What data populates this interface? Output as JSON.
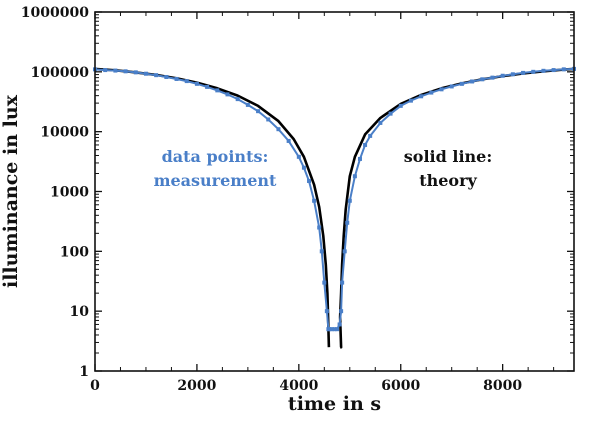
{
  "chart_data": {
    "type": "line",
    "xlabel": "time in s",
    "ylabel": "illuminance in lux",
    "xlim": [
      0,
      9400
    ],
    "ylim": [
      1,
      1000000
    ],
    "yscale": "log",
    "grid": false,
    "x_ticks": [
      0,
      2000,
      4000,
      6000,
      8000
    ],
    "x_tick_labels": [
      "0",
      "2000",
      "4000",
      "6000",
      "8000"
    ],
    "y_ticks": [
      1,
      10,
      100,
      1000,
      10000,
      100000,
      1000000
    ],
    "y_tick_labels": [
      "1",
      "10",
      "100",
      "1000",
      "10000",
      "100000",
      "1000000"
    ],
    "annotations": [
      {
        "lines": [
          "data points:",
          "measurement"
        ],
        "color": "#4a7fc8"
      },
      {
        "lines": [
          "solid line:",
          "theory"
        ],
        "color": "#111111"
      }
    ],
    "colors": {
      "measurement": "#4a7fc8",
      "theory": "#000000"
    },
    "series": [
      {
        "role": "measurement",
        "style": "points",
        "x": [
          0,
          200,
          400,
          600,
          800,
          1000,
          1200,
          1400,
          1600,
          1800,
          2000,
          2200,
          2400,
          2600,
          2800,
          3000,
          3200,
          3400,
          3600,
          3800,
          4000,
          4100,
          4200,
          4300,
          4400,
          4450,
          4500,
          4550,
          4580,
          4600,
          4650,
          4700,
          4750,
          4800,
          4830,
          4850,
          4900,
          4950,
          5000,
          5100,
          5200,
          5300,
          5400,
          5600,
          5800,
          6000,
          6200,
          6400,
          6600,
          6800,
          7000,
          7200,
          7400,
          7600,
          7800,
          8000,
          8200,
          8400,
          8600,
          8800,
          9000,
          9200,
          9400
        ],
        "y": [
          110000,
          107000,
          105000,
          102000,
          98000,
          93000,
          88000,
          82000,
          76000,
          70000,
          63000,
          56000,
          49000,
          42000,
          35000,
          28000,
          22000,
          16000,
          11000,
          7000,
          3800,
          2500,
          1500,
          700,
          250,
          100,
          30,
          10,
          5,
          5,
          5,
          5,
          5,
          6,
          10,
          30,
          100,
          300,
          700,
          1800,
          3500,
          6000,
          8500,
          14000,
          20000,
          27000,
          33000,
          39000,
          45000,
          51000,
          57000,
          63000,
          69000,
          75000,
          80000,
          86000,
          91000,
          96000,
          100000,
          104000,
          107000,
          110000,
          112000
        ]
      },
      {
        "role": "theory",
        "style": "line",
        "x": [
          0,
          400,
          800,
          1200,
          1600,
          2000,
          2400,
          2800,
          3200,
          3600,
          3900,
          4100,
          4300,
          4400,
          4480,
          4530,
          4560,
          4575,
          4590,
          4590,
          4575,
          4590,
          null,
          4810,
          4830,
          4810,
          4830,
          4850,
          4880,
          4920,
          5000,
          5100,
          5300,
          5600,
          6000,
          6400,
          6800,
          7200,
          7600,
          8000,
          8400,
          8800,
          9200,
          9400
        ],
        "y": [
          112000,
          106000,
          98000,
          89000,
          78000,
          66000,
          53000,
          40000,
          27000,
          15000,
          7500,
          3800,
          1300,
          550,
          180,
          60,
          20,
          8,
          2.5,
          2.5,
          null,
          null,
          null,
          2.5,
          2.5,
          8,
          20,
          60,
          180,
          500,
          1800,
          3800,
          9000,
          17000,
          29000,
          41000,
          53000,
          64000,
          75000,
          85000,
          94000,
          102000,
          109000,
          112000
        ]
      }
    ]
  }
}
